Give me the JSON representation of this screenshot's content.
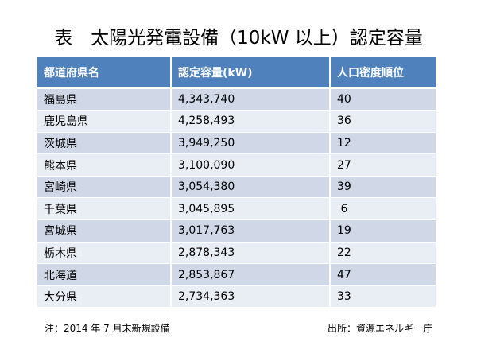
{
  "header": {
    "title": "表　太陽光発電設備（10kW 以上）認定容量"
  },
  "table": {
    "columns": [
      "都道府県名",
      "認定容量(kW)",
      "人口密度順位"
    ],
    "rows": [
      [
        "福島県",
        "4,343,740",
        "40"
      ],
      [
        "鹿児島県",
        "4,258,493",
        "36"
      ],
      [
        "茨城県",
        "3,949,250",
        "12"
      ],
      [
        "熊本県",
        "3,100,090",
        "27"
      ],
      [
        "宮崎県",
        "3,054,380",
        "39"
      ],
      [
        "千葉県",
        "3,045,895",
        " 6"
      ],
      [
        "宮城県",
        "3,017,763",
        "19"
      ],
      [
        "栃木県",
        "2,878,343",
        "22"
      ],
      [
        "北海道",
        "2,853,867",
        "47"
      ],
      [
        "大分県",
        "2,734,363",
        "33"
      ]
    ]
  },
  "footer": {
    "note": "注：2014 年 7 月末新規設備",
    "source": "出所：資源エネルギー庁"
  }
}
